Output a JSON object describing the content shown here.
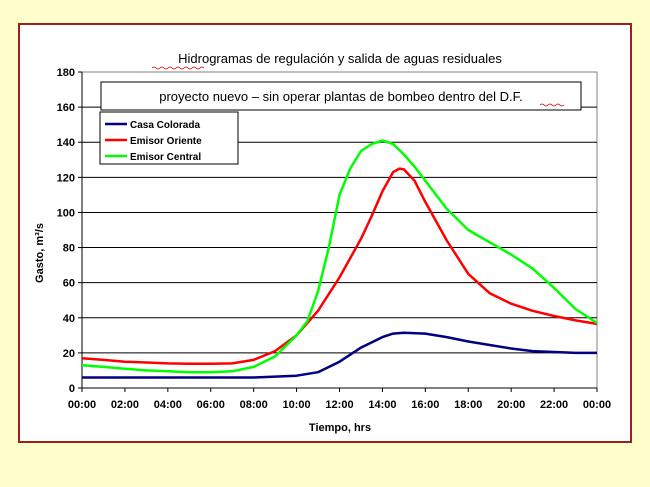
{
  "chart_data": {
    "type": "line",
    "title": "Hidrogramas de regulación y salida de aguas residuales",
    "subtitle": "proyecto nuevo – sin operar plantas de bombeo dentro del D.F.",
    "xlabel": "Tiempo, hrs",
    "ylabel": "Gasto, m³/s",
    "ylim": [
      0,
      180
    ],
    "xlim": [
      0,
      24
    ],
    "yticks": [
      "0",
      "20",
      "40",
      "60",
      "80",
      "100",
      "120",
      "140",
      "160",
      "180"
    ],
    "xticks": [
      "00:00",
      "02:00",
      "04:00",
      "06:00",
      "08:00",
      "10:00",
      "12:00",
      "14:00",
      "16:00",
      "18:00",
      "20:00",
      "22:00",
      "00:00"
    ],
    "grid": "horizontal",
    "legend_position": "top-left",
    "series": [
      {
        "name": "Casa Colorada",
        "color": "#000080",
        "x": [
          0,
          2,
          4,
          6,
          8,
          9,
          10,
          11,
          12,
          13,
          14,
          14.5,
          15,
          16,
          17,
          18,
          19,
          20,
          21,
          22,
          23,
          24
        ],
        "y": [
          6,
          6,
          6,
          6,
          6,
          6.5,
          7,
          9,
          15,
          23,
          29,
          31,
          31.5,
          31,
          29,
          26.5,
          24.5,
          22.5,
          21,
          20.5,
          20,
          20
        ]
      },
      {
        "name": "Emisor Oriente",
        "color": "#ff0000",
        "x": [
          0,
          1,
          2,
          3,
          4,
          5,
          6,
          7,
          8,
          9,
          10,
          11,
          12,
          13,
          13.5,
          14,
          14.5,
          14.8,
          15,
          15.5,
          16,
          17,
          18,
          19,
          20,
          21,
          22,
          23,
          24
        ],
        "y": [
          17,
          16,
          15,
          14.5,
          14,
          13.8,
          13.8,
          14,
          16,
          21,
          30,
          44,
          63,
          85,
          98,
          112,
          123,
          125,
          124.5,
          118,
          106,
          84,
          65,
          54,
          48,
          44,
          41,
          38.5,
          36.5
        ],
        "type": "line"
      },
      {
        "name": "Emisor Central",
        "color": "#00ff00",
        "x": [
          0,
          1,
          2,
          3,
          4,
          5,
          6,
          7,
          8,
          9,
          10,
          10.5,
          11,
          11.5,
          12,
          12.5,
          13,
          13.5,
          14,
          14.5,
          15,
          15.5,
          16,
          17,
          18,
          19,
          20,
          21,
          22,
          23,
          24
        ],
        "y": [
          13,
          12,
          11,
          10,
          9.5,
          9,
          9,
          9.5,
          12,
          18,
          30,
          38,
          55,
          80,
          110,
          125,
          135,
          139,
          141,
          139,
          133,
          126,
          118,
          102,
          90,
          83,
          76,
          68,
          57,
          45,
          37
        ]
      }
    ]
  }
}
